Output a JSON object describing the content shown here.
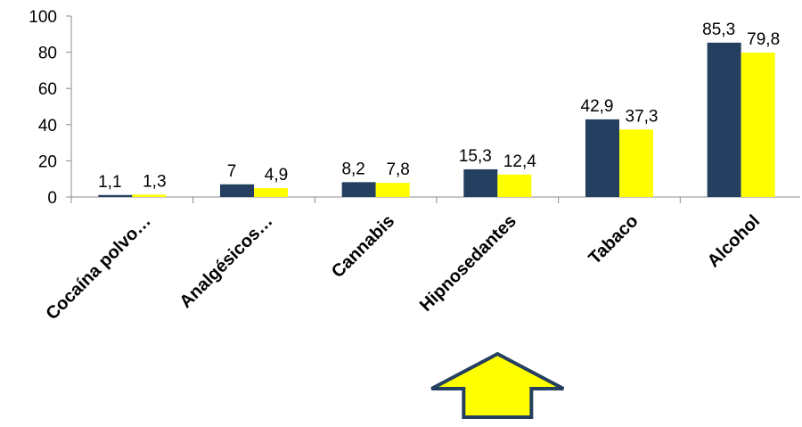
{
  "chart_data": {
    "type": "bar",
    "title": "",
    "xlabel": "",
    "ylabel": "",
    "categories": [
      "Cocaína polvo…",
      "Analgésicos…",
      "Cannabis",
      "Hipnosedantes",
      "Tabaco",
      "Alcohol"
    ],
    "series": [
      {
        "color": "#243F60",
        "values": [
          1.1,
          7,
          8.2,
          15.3,
          42.9,
          85.3
        ],
        "labels": [
          "1,1",
          "7",
          "8,2",
          "15,3",
          "42,9",
          "85,3"
        ]
      },
      {
        "color": "#FFFF00",
        "values": [
          1.3,
          4.9,
          7.8,
          12.4,
          37.3,
          79.8
        ],
        "labels": [
          "1,3",
          "4,9",
          "7,8",
          "12,4",
          "37,3",
          "79,8"
        ]
      }
    ],
    "ylim": [
      0,
      100
    ],
    "yticks": [
      0,
      20,
      40,
      60,
      80,
      100
    ],
    "ytick_labels": [
      "0",
      "20",
      "40",
      "60",
      "80",
      "100"
    ],
    "grid": false,
    "legend": "none",
    "highlighted_category": "Hipnosedantes",
    "annotation": {
      "shape": "up-arrow",
      "fill": "#FFFF00",
      "stroke": "#243F60",
      "points_to": "Hipnosedantes"
    }
  }
}
